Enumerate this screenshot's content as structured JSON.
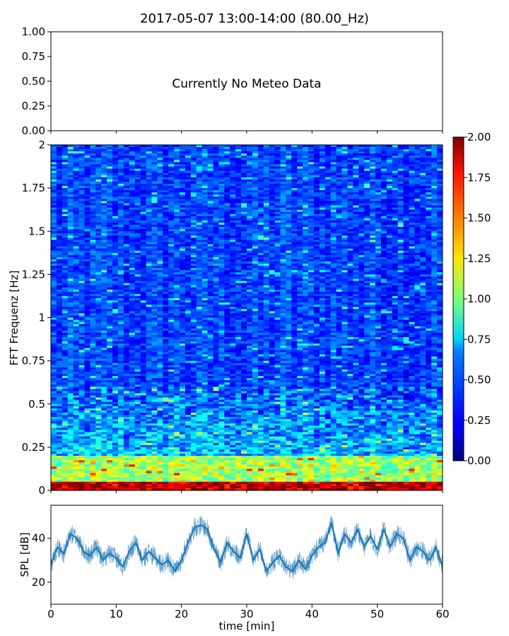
{
  "title": "2017-05-07 13:00-14:00 (80.00_Hz)",
  "meteo_message": "Currently No Meteo Data",
  "chart_data": [
    {
      "type": "line",
      "panel": "meteo",
      "title": "2017-05-07 13:00-14:00 (80.00_Hz)",
      "ylim": [
        0,
        1
      ],
      "yticks": [
        "0.00",
        "0.25",
        "0.50",
        "0.75",
        "1.00"
      ],
      "annotation": "Currently No Meteo Data",
      "series": []
    },
    {
      "type": "heatmap",
      "panel": "spectrogram",
      "ylabel": "FFT Frequenz [Hz]",
      "xlim": [
        0,
        60
      ],
      "ylim": [
        0,
        2
      ],
      "yticks": [
        "0",
        "0.25",
        "0.5",
        "0.75",
        "1",
        "1.25",
        "1.5",
        "1.75",
        "2"
      ],
      "colorbar": {
        "range": [
          0,
          2
        ],
        "ticks": [
          "0.00",
          "0.25",
          "0.50",
          "0.75",
          "1.00",
          "1.25",
          "1.50",
          "1.75",
          "2.00"
        ],
        "colormap": "jet"
      },
      "description_of_values": {
        "low_freq_band_0_to_0.05Hz": 1.8,
        "band_0.05_to_0.2Hz": 1.0,
        "band_0.2_to_0.6Hz": 0.55,
        "above_0.6Hz": 0.3
      }
    },
    {
      "type": "line",
      "panel": "spl",
      "ylabel": "SPL [dB]",
      "xlabel": "time [min]",
      "xlim": [
        0,
        60
      ],
      "ylim": [
        10,
        55
      ],
      "xticks": [
        "0",
        "10",
        "20",
        "30",
        "40",
        "50",
        "60"
      ],
      "yticks": [
        "20",
        "40"
      ],
      "color": "#1f77b4",
      "x": [
        0,
        1,
        2,
        3,
        4,
        5,
        6,
        7,
        8,
        9,
        10,
        11,
        12,
        13,
        14,
        15,
        16,
        17,
        18,
        19,
        20,
        21,
        22,
        23,
        24,
        25,
        26,
        27,
        28,
        29,
        30,
        31,
        32,
        33,
        34,
        35,
        36,
        37,
        38,
        39,
        40,
        41,
        42,
        43,
        44,
        45,
        46,
        47,
        48,
        49,
        50,
        51,
        52,
        53,
        54,
        55,
        56,
        57,
        58,
        59,
        60
      ],
      "y": [
        28,
        36,
        33,
        42,
        40,
        34,
        32,
        36,
        30,
        33,
        31,
        27,
        34,
        38,
        30,
        34,
        31,
        28,
        30,
        25,
        30,
        38,
        45,
        46,
        44,
        35,
        29,
        38,
        34,
        31,
        42,
        30,
        35,
        25,
        29,
        32,
        27,
        25,
        30,
        26,
        32,
        36,
        38,
        47,
        33,
        42,
        38,
        44,
        36,
        41,
        35,
        44,
        36,
        42,
        40,
        30,
        36,
        34,
        30,
        36,
        27
      ]
    }
  ]
}
